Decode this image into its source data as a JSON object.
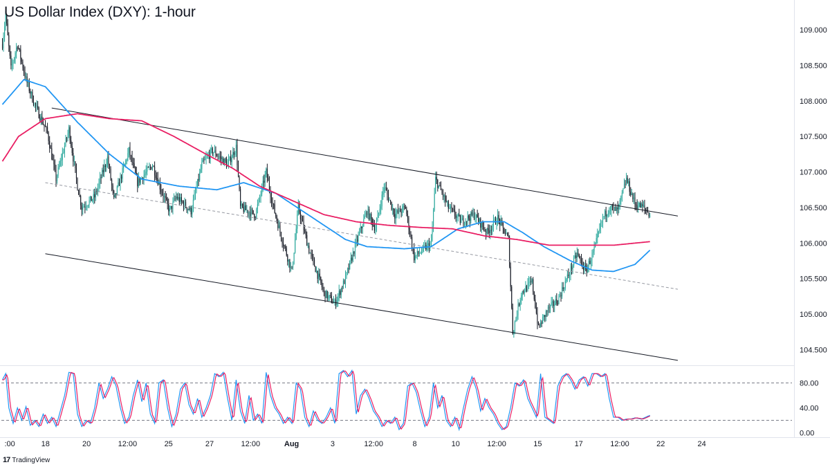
{
  "title": "US Dollar Index (DXY): 1-hour",
  "brand": {
    "logo": "17",
    "name": "TradingView"
  },
  "chart_data": {
    "type": "candlestick",
    "title": "US Dollar Index (DXY): 1-hour",
    "price_axis": {
      "ylim": [
        104.3,
        109.4
      ],
      "ticks": [
        "109.000",
        "108.500",
        "108.000",
        "107.500",
        "107.000",
        "106.500",
        "106.000",
        "105.500",
        "105.000",
        "104.500"
      ],
      "tick_values": [
        109.0,
        108.5,
        108.0,
        107.5,
        107.0,
        106.5,
        106.0,
        105.5,
        105.0,
        104.5
      ]
    },
    "time_axis": {
      "ticks": [
        ":00",
        "18",
        "20",
        "12:00",
        "25",
        "27",
        "12:00",
        "Aug",
        "3",
        "12:00",
        "8",
        "10",
        "12:00",
        "15",
        "17",
        "12:00",
        "22",
        "24"
      ],
      "bars_per_tick_approx": 12
    },
    "price_path": [
      [
        0,
        108.8
      ],
      [
        3,
        109.2
      ],
      [
        8,
        108.45
      ],
      [
        14,
        108.8
      ],
      [
        22,
        108.3
      ],
      [
        30,
        107.95
      ],
      [
        42,
        107.55
      ],
      [
        50,
        106.9
      ],
      [
        62,
        107.6
      ],
      [
        70,
        106.8
      ],
      [
        74,
        106.5
      ],
      [
        86,
        106.65
      ],
      [
        98,
        107.2
      ],
      [
        104,
        106.6
      ],
      [
        118,
        107.3
      ],
      [
        126,
        106.85
      ],
      [
        140,
        107.1
      ],
      [
        148,
        106.75
      ],
      [
        156,
        106.45
      ],
      [
        162,
        106.65
      ],
      [
        176,
        106.45
      ],
      [
        186,
        107.1
      ],
      [
        196,
        107.3
      ],
      [
        210,
        107.1
      ],
      [
        218,
        107.35
      ],
      [
        222,
        106.5
      ],
      [
        236,
        106.4
      ],
      [
        246,
        107.0
      ],
      [
        252,
        106.55
      ],
      [
        260,
        106.1
      ],
      [
        270,
        105.6
      ],
      [
        276,
        106.5
      ],
      [
        286,
        105.9
      ],
      [
        300,
        105.3
      ],
      [
        310,
        105.15
      ],
      [
        320,
        105.5
      ],
      [
        330,
        106.0
      ],
      [
        340,
        106.45
      ],
      [
        348,
        106.2
      ],
      [
        356,
        106.8
      ],
      [
        366,
        106.4
      ],
      [
        376,
        106.5
      ],
      [
        384,
        105.8
      ],
      [
        392,
        105.9
      ],
      [
        400,
        106.0
      ],
      [
        404,
        106.9
      ],
      [
        416,
        106.5
      ],
      [
        428,
        106.3
      ],
      [
        440,
        106.4
      ],
      [
        452,
        106.15
      ],
      [
        462,
        106.35
      ],
      [
        472,
        106.05
      ],
      [
        476,
        104.75
      ],
      [
        484,
        105.3
      ],
      [
        494,
        105.45
      ],
      [
        500,
        104.8
      ],
      [
        508,
        105.05
      ],
      [
        518,
        105.2
      ],
      [
        528,
        105.55
      ],
      [
        536,
        105.85
      ],
      [
        544,
        105.6
      ],
      [
        552,
        105.9
      ],
      [
        560,
        106.35
      ],
      [
        566,
        106.5
      ],
      [
        574,
        106.45
      ],
      [
        582,
        106.9
      ],
      [
        590,
        106.55
      ],
      [
        598,
        106.5
      ],
      [
        604,
        106.4
      ]
    ],
    "channel": {
      "upper": [
        [
          46,
          107.9
        ],
        [
          630,
          106.38
        ]
      ],
      "middle": [
        [
          40,
          106.85
        ],
        [
          630,
          105.35
        ]
      ],
      "lower": [
        [
          40,
          105.85
        ],
        [
          630,
          104.35
        ]
      ]
    },
    "moving_averages": [
      {
        "color": "#2196f3",
        "path": [
          [
            0,
            107.95
          ],
          [
            20,
            108.3
          ],
          [
            40,
            108.2
          ],
          [
            70,
            107.7
          ],
          [
            100,
            107.25
          ],
          [
            130,
            106.9
          ],
          [
            165,
            106.8
          ],
          [
            200,
            106.75
          ],
          [
            225,
            106.85
          ],
          [
            255,
            106.7
          ],
          [
            285,
            106.4
          ],
          [
            305,
            106.2
          ],
          [
            320,
            106.05
          ],
          [
            340,
            105.95
          ],
          [
            375,
            105.92
          ],
          [
            400,
            105.95
          ],
          [
            425,
            106.2
          ],
          [
            448,
            106.3
          ],
          [
            468,
            106.3
          ],
          [
            485,
            106.15
          ],
          [
            505,
            105.95
          ],
          [
            530,
            105.75
          ],
          [
            550,
            105.62
          ],
          [
            570,
            105.6
          ],
          [
            590,
            105.7
          ],
          [
            604,
            105.9
          ]
        ]
      },
      {
        "color": "#e91e63",
        "path": [
          [
            0,
            107.15
          ],
          [
            15,
            107.5
          ],
          [
            40,
            107.75
          ],
          [
            70,
            107.82
          ],
          [
            100,
            107.75
          ],
          [
            130,
            107.72
          ],
          [
            160,
            107.5
          ],
          [
            190,
            107.25
          ],
          [
            215,
            107.05
          ],
          [
            240,
            106.8
          ],
          [
            270,
            106.6
          ],
          [
            300,
            106.4
          ],
          [
            330,
            106.3
          ],
          [
            360,
            106.25
          ],
          [
            390,
            106.22
          ],
          [
            420,
            106.2
          ],
          [
            450,
            106.1
          ],
          [
            480,
            106.05
          ],
          [
            510,
            105.97
          ],
          [
            540,
            105.97
          ],
          [
            570,
            105.97
          ],
          [
            604,
            106.02
          ]
        ]
      }
    ],
    "stochastic": {
      "ylim": [
        -5,
        105
      ],
      "ticks": [
        "80.00",
        "40.00",
        "0.00"
      ],
      "tick_values": [
        80,
        40,
        0
      ],
      "levels": [
        80,
        20
      ],
      "line_colors": [
        "#2196f3",
        "#e91e63"
      ],
      "path": [
        [
          0,
          85
        ],
        [
          3,
          95
        ],
        [
          6,
          40
        ],
        [
          10,
          15
        ],
        [
          14,
          40
        ],
        [
          18,
          20
        ],
        [
          22,
          42
        ],
        [
          26,
          12
        ],
        [
          30,
          20
        ],
        [
          34,
          10
        ],
        [
          38,
          30
        ],
        [
          42,
          15
        ],
        [
          46,
          25
        ],
        [
          50,
          10
        ],
        [
          54,
          35
        ],
        [
          58,
          60
        ],
        [
          62,
          97
        ],
        [
          66,
          95
        ],
        [
          70,
          30
        ],
        [
          74,
          10
        ],
        [
          78,
          20
        ],
        [
          82,
          15
        ],
        [
          86,
          40
        ],
        [
          90,
          80
        ],
        [
          94,
          55
        ],
        [
          98,
          70
        ],
        [
          102,
          90
        ],
        [
          106,
          75
        ],
        [
          110,
          40
        ],
        [
          114,
          15
        ],
        [
          118,
          25
        ],
        [
          122,
          60
        ],
        [
          126,
          85
        ],
        [
          130,
          50
        ],
        [
          134,
          80
        ],
        [
          138,
          30
        ],
        [
          142,
          15
        ],
        [
          146,
          80
        ],
        [
          150,
          85
        ],
        [
          154,
          40
        ],
        [
          158,
          10
        ],
        [
          162,
          30
        ],
        [
          166,
          70
        ],
        [
          170,
          80
        ],
        [
          174,
          45
        ],
        [
          178,
          30
        ],
        [
          182,
          55
        ],
        [
          186,
          25
        ],
        [
          190,
          40
        ],
        [
          194,
          60
        ],
        [
          198,
          95
        ],
        [
          202,
          90
        ],
        [
          206,
          97
        ],
        [
          210,
          55
        ],
        [
          214,
          20
        ],
        [
          218,
          85
        ],
        [
          222,
          35
        ],
        [
          226,
          15
        ],
        [
          230,
          60
        ],
        [
          234,
          20
        ],
        [
          238,
          30
        ],
        [
          242,
          15
        ],
        [
          246,
          97
        ],
        [
          250,
          60
        ],
        [
          254,
          40
        ],
        [
          258,
          30
        ],
        [
          262,
          15
        ],
        [
          266,
          25
        ],
        [
          270,
          15
        ],
        [
          274,
          80
        ],
        [
          278,
          70
        ],
        [
          282,
          25
        ],
        [
          286,
          10
        ],
        [
          290,
          35
        ],
        [
          294,
          20
        ],
        [
          298,
          15
        ],
        [
          302,
          25
        ],
        [
          306,
          40
        ],
        [
          310,
          15
        ],
        [
          314,
          95
        ],
        [
          318,
          100
        ],
        [
          322,
          90
        ],
        [
          326,
          100
        ],
        [
          330,
          30
        ],
        [
          334,
          60
        ],
        [
          338,
          70
        ],
        [
          342,
          55
        ],
        [
          346,
          35
        ],
        [
          350,
          25
        ],
        [
          354,
          10
        ],
        [
          358,
          20
        ],
        [
          362,
          15
        ],
        [
          366,
          25
        ],
        [
          370,
          5
        ],
        [
          374,
          15
        ],
        [
          378,
          75
        ],
        [
          382,
          80
        ],
        [
          386,
          65
        ],
        [
          390,
          35
        ],
        [
          394,
          10
        ],
        [
          398,
          25
        ],
        [
          402,
          80
        ],
        [
          406,
          40
        ],
        [
          410,
          60
        ],
        [
          414,
          20
        ],
        [
          418,
          10
        ],
        [
          422,
          25
        ],
        [
          426,
          5
        ],
        [
          430,
          40
        ],
        [
          434,
          70
        ],
        [
          438,
          90
        ],
        [
          442,
          70
        ],
        [
          446,
          35
        ],
        [
          450,
          55
        ],
        [
          454,
          40
        ],
        [
          458,
          30
        ],
        [
          462,
          15
        ],
        [
          466,
          5
        ],
        [
          470,
          10
        ],
        [
          474,
          40
        ],
        [
          478,
          80
        ],
        [
          482,
          75
        ],
        [
          486,
          85
        ],
        [
          490,
          55
        ],
        [
          494,
          40
        ],
        [
          498,
          25
        ],
        [
          502,
          95
        ],
        [
          506,
          25
        ],
        [
          510,
          20
        ],
        [
          514,
          15
        ],
        [
          518,
          75
        ],
        [
          522,
          90
        ],
        [
          526,
          95
        ],
        [
          530,
          85
        ],
        [
          534,
          70
        ],
        [
          538,
          85
        ],
        [
          542,
          90
        ],
        [
          546,
          75
        ],
        [
          550,
          95
        ],
        [
          554,
          95
        ],
        [
          558,
          90
        ],
        [
          562,
          95
        ],
        [
          566,
          55
        ],
        [
          570,
          25
        ],
        [
          574,
          25
        ],
        [
          578,
          20
        ],
        [
          582,
          22
        ],
        [
          586,
          22
        ],
        [
          590,
          24
        ],
        [
          596,
          22
        ],
        [
          604,
          28
        ]
      ]
    },
    "colors": {
      "up": "#26a69a",
      "down": "#131722",
      "grid_axis": "#9598a1",
      "background": "#ffffff"
    }
  }
}
